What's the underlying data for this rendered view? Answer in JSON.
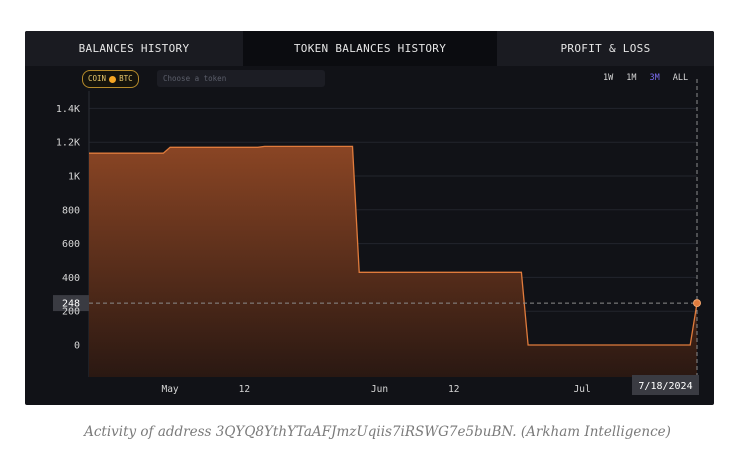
{
  "tabs": [
    {
      "label": "BALANCES HISTORY",
      "active": false
    },
    {
      "label": "TOKEN BALANCES HISTORY",
      "active": true
    },
    {
      "label": "PROFIT & LOSS",
      "active": false
    }
  ],
  "filters": {
    "coin_label": "COIN",
    "btc_label": "BTC",
    "token_placeholder": "Choose a token"
  },
  "ranges": [
    "1W",
    "1M",
    "3M",
    "ALL"
  ],
  "selected_range": "3M",
  "colors": {
    "accent": "#e07b3c",
    "area_top": "#8a4524",
    "selected_range": "#7b6cf0",
    "panel_bg": "#111217"
  },
  "chart_data": {
    "type": "area",
    "title": "",
    "xlabel": "",
    "ylabel": "",
    "x_ticks": [
      "May",
      "12",
      "Jun",
      "12",
      "Jul"
    ],
    "y_ticks": [
      "1.4K",
      "1.2K",
      "1K",
      "800",
      "600",
      "400",
      "200",
      "0"
    ],
    "ylim": [
      -175,
      1430
    ],
    "series": [
      {
        "values": [
          {
            "date": "2024-04-19",
            "value": 1135
          },
          {
            "date": "2024-04-30",
            "value": 1135
          },
          {
            "date": "2024-05-01",
            "value": 1170
          },
          {
            "date": "2024-05-14",
            "value": 1170
          },
          {
            "date": "2024-05-15",
            "value": 1175
          },
          {
            "date": "2024-05-28",
            "value": 1175
          },
          {
            "date": "2024-05-29",
            "value": 430
          },
          {
            "date": "2024-06-22",
            "value": 430
          },
          {
            "date": "2024-06-23",
            "value": 0
          },
          {
            "date": "2024-07-17",
            "value": 0
          },
          {
            "date": "2024-07-18",
            "value": 248
          }
        ]
      }
    ],
    "crosshair": {
      "value_label": "248",
      "date_label": "7/18/2024"
    },
    "grid": true
  },
  "caption": "Activity of address 3QYQ8YthYTaAFJmzUqiis7iRSWG7e5buBN. (Arkham Intelligence)"
}
